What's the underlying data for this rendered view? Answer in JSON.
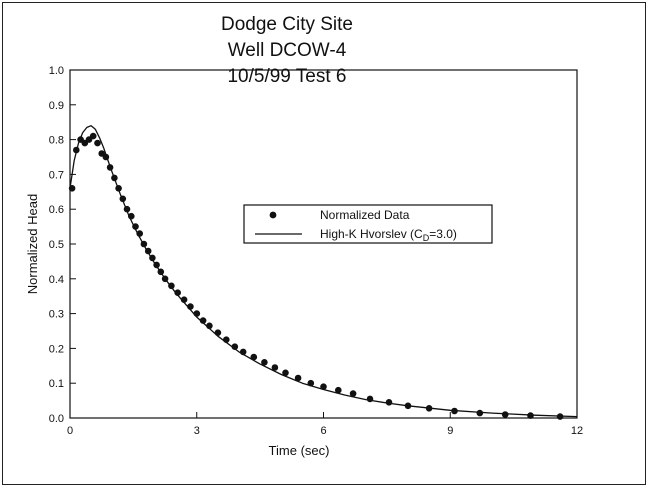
{
  "chart_data": {
    "type": "scatter",
    "title_lines": [
      "Dodge City Site",
      "Well DCOW-4",
      "10/5/99 Test 6"
    ],
    "xlabel": "Time (sec)",
    "ylabel": "Normalized Head",
    "xlim": [
      0,
      12
    ],
    "ylim": [
      0,
      1.0
    ],
    "xticks": [
      "0",
      "3",
      "6",
      "9",
      "12"
    ],
    "xtick_values": [
      0,
      3,
      6,
      9,
      12
    ],
    "yticks": [
      "0.0",
      "0.1",
      "0.2",
      "0.3",
      "0.4",
      "0.5",
      "0.6",
      "0.7",
      "0.8",
      "0.9",
      "1.0"
    ],
    "ytick_values": [
      0,
      0.1,
      0.2,
      0.3,
      0.4,
      0.5,
      0.6,
      0.7,
      0.8,
      0.9,
      1.0
    ],
    "grid": false,
    "legend_position": "center-right",
    "series": [
      {
        "name": "Normalized Data",
        "kind": "points",
        "points": [
          [
            0.05,
            0.66
          ],
          [
            0.15,
            0.77
          ],
          [
            0.25,
            0.8
          ],
          [
            0.35,
            0.79
          ],
          [
            0.45,
            0.8
          ],
          [
            0.55,
            0.81
          ],
          [
            0.65,
            0.79
          ],
          [
            0.75,
            0.76
          ],
          [
            0.85,
            0.75
          ],
          [
            0.95,
            0.72
          ],
          [
            1.05,
            0.69
          ],
          [
            1.15,
            0.66
          ],
          [
            1.25,
            0.63
          ],
          [
            1.35,
            0.6
          ],
          [
            1.45,
            0.58
          ],
          [
            1.55,
            0.55
          ],
          [
            1.65,
            0.53
          ],
          [
            1.75,
            0.5
          ],
          [
            1.85,
            0.48
          ],
          [
            1.95,
            0.46
          ],
          [
            2.05,
            0.44
          ],
          [
            2.15,
            0.42
          ],
          [
            2.25,
            0.4
          ],
          [
            2.4,
            0.38
          ],
          [
            2.55,
            0.36
          ],
          [
            2.7,
            0.34
          ],
          [
            2.85,
            0.32
          ],
          [
            3.0,
            0.3
          ],
          [
            3.15,
            0.28
          ],
          [
            3.3,
            0.265
          ],
          [
            3.5,
            0.245
          ],
          [
            3.7,
            0.225
          ],
          [
            3.9,
            0.205
          ],
          [
            4.1,
            0.19
          ],
          [
            4.35,
            0.175
          ],
          [
            4.6,
            0.16
          ],
          [
            4.85,
            0.145
          ],
          [
            5.1,
            0.13
          ],
          [
            5.4,
            0.115
          ],
          [
            5.7,
            0.1
          ],
          [
            6.0,
            0.09
          ],
          [
            6.35,
            0.08
          ],
          [
            6.7,
            0.07
          ],
          [
            7.1,
            0.055
          ],
          [
            7.55,
            0.045
          ],
          [
            8.0,
            0.035
          ],
          [
            8.5,
            0.028
          ],
          [
            9.1,
            0.02
          ],
          [
            9.7,
            0.014
          ],
          [
            10.3,
            0.01
          ],
          [
            10.9,
            0.007
          ],
          [
            11.6,
            0.004
          ]
        ]
      },
      {
        "name": "High-K Hvorslev (C",
        "name_sub": "D",
        "name_suffix": "=3.0)",
        "kind": "line",
        "points": [
          [
            0.0,
            0.66
          ],
          [
            0.1,
            0.74
          ],
          [
            0.2,
            0.79
          ],
          [
            0.3,
            0.82
          ],
          [
            0.4,
            0.835
          ],
          [
            0.5,
            0.84
          ],
          [
            0.6,
            0.83
          ],
          [
            0.7,
            0.805
          ],
          [
            0.8,
            0.775
          ],
          [
            0.9,
            0.74
          ],
          [
            1.0,
            0.705
          ],
          [
            1.2,
            0.64
          ],
          [
            1.4,
            0.58
          ],
          [
            1.6,
            0.53
          ],
          [
            1.8,
            0.485
          ],
          [
            2.0,
            0.445
          ],
          [
            2.25,
            0.4
          ],
          [
            2.5,
            0.36
          ],
          [
            2.75,
            0.325
          ],
          [
            3.0,
            0.29
          ],
          [
            3.5,
            0.235
          ],
          [
            4.0,
            0.19
          ],
          [
            4.5,
            0.155
          ],
          [
            5.0,
            0.125
          ],
          [
            5.5,
            0.1
          ],
          [
            6.0,
            0.082
          ],
          [
            6.5,
            0.066
          ],
          [
            7.0,
            0.053
          ],
          [
            7.5,
            0.043
          ],
          [
            8.0,
            0.035
          ],
          [
            9.0,
            0.022
          ],
          [
            10.0,
            0.014
          ],
          [
            11.0,
            0.008
          ],
          [
            12.0,
            0.004
          ]
        ]
      }
    ]
  }
}
